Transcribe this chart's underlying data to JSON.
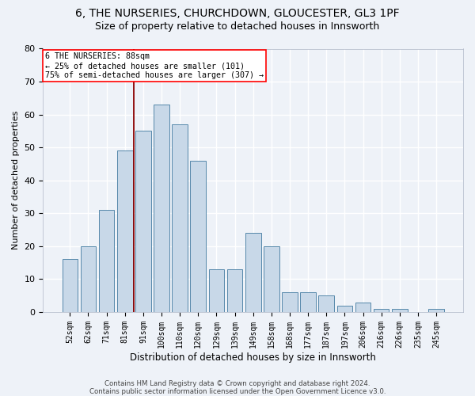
{
  "title1": "6, THE NURSERIES, CHURCHDOWN, GLOUCESTER, GL3 1PF",
  "title2": "Size of property relative to detached houses in Innsworth",
  "xlabel": "Distribution of detached houses by size in Innsworth",
  "ylabel": "Number of detached properties",
  "categories": [
    "52sqm",
    "62sqm",
    "71sqm",
    "81sqm",
    "91sqm",
    "100sqm",
    "110sqm",
    "120sqm",
    "129sqm",
    "139sqm",
    "149sqm",
    "158sqm",
    "168sqm",
    "177sqm",
    "187sqm",
    "197sqm",
    "206sqm",
    "216sqm",
    "226sqm",
    "235sqm",
    "245sqm"
  ],
  "values": [
    16,
    20,
    31,
    49,
    55,
    63,
    57,
    46,
    13,
    13,
    24,
    20,
    6,
    6,
    5,
    2,
    3,
    1,
    1,
    0,
    1
  ],
  "bar_color": "#c8d8e8",
  "bar_edge_color": "#5588aa",
  "reference_line_label": "6 THE NURSERIES: 88sqm",
  "annotation_line1": "← 25% of detached houses are smaller (101)",
  "annotation_line2": "75% of semi-detached houses are larger (307) →",
  "footer1": "Contains HM Land Registry data © Crown copyright and database right 2024.",
  "footer2": "Contains public sector information licensed under the Open Government Licence v3.0.",
  "ylim": [
    0,
    80
  ],
  "yticks": [
    0,
    10,
    20,
    30,
    40,
    50,
    60,
    70,
    80
  ],
  "bg_color": "#eef2f8",
  "grid_color": "#ffffff",
  "title1_fontsize": 10,
  "title2_fontsize": 9
}
